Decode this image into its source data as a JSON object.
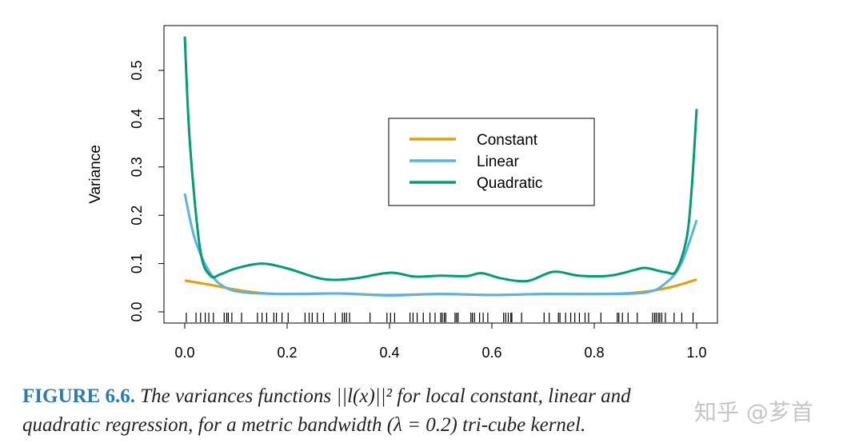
{
  "chart_data": {
    "type": "line",
    "title": "",
    "xlabel": "",
    "ylabel": "Variance",
    "xlim": [
      -0.04,
      1.04
    ],
    "ylim": [
      -0.023,
      0.593
    ],
    "xticks": [
      "0.0",
      "0.2",
      "0.4",
      "0.6",
      "0.8",
      "1.0"
    ],
    "yticks": [
      "0.0",
      "0.1",
      "0.2",
      "0.3",
      "0.4",
      "0.5"
    ],
    "grid": false,
    "legend_position": "upper-center-right",
    "series": [
      {
        "name": "Constant",
        "color": "#E69F00",
        "x": [
          0,
          0.05,
          0.1,
          0.15,
          0.2,
          0.3,
          0.4,
          0.5,
          0.6,
          0.7,
          0.8,
          0.87,
          0.92,
          0.96,
          1.0
        ],
        "y": [
          0.065,
          0.056,
          0.046,
          0.039,
          0.037,
          0.038,
          0.035,
          0.037,
          0.035,
          0.037,
          0.037,
          0.039,
          0.045,
          0.054,
          0.067
        ]
      },
      {
        "name": "Linear",
        "color": "#56B4E9",
        "x": [
          0,
          0.02,
          0.05,
          0.08,
          0.12,
          0.2,
          0.3,
          0.4,
          0.5,
          0.6,
          0.7,
          0.8,
          0.9,
          0.94,
          0.97,
          1.0
        ],
        "y": [
          0.245,
          0.15,
          0.08,
          0.05,
          0.04,
          0.037,
          0.038,
          0.034,
          0.037,
          0.035,
          0.037,
          0.037,
          0.04,
          0.06,
          0.1,
          0.19
        ]
      },
      {
        "name": "Quadratic",
        "color": "#009E73",
        "x": [
          0,
          0.01,
          0.03,
          0.05,
          0.07,
          0.1,
          0.15,
          0.2,
          0.27,
          0.33,
          0.4,
          0.45,
          0.5,
          0.55,
          0.58,
          0.62,
          0.67,
          0.72,
          0.77,
          0.83,
          0.88,
          0.9,
          0.94,
          0.96,
          0.98,
          0.99,
          1.0
        ],
        "y": [
          0.57,
          0.35,
          0.13,
          0.075,
          0.078,
          0.09,
          0.1,
          0.09,
          0.068,
          0.069,
          0.081,
          0.073,
          0.075,
          0.074,
          0.08,
          0.069,
          0.064,
          0.083,
          0.075,
          0.075,
          0.087,
          0.091,
          0.082,
          0.085,
          0.15,
          0.25,
          0.42
        ]
      }
    ],
    "rug": [
      0.003,
      0.022,
      0.031,
      0.04,
      0.047,
      0.056,
      0.077,
      0.082,
      0.085,
      0.092,
      0.111,
      0.142,
      0.151,
      0.16,
      0.174,
      0.179,
      0.19,
      0.202,
      0.235,
      0.243,
      0.249,
      0.259,
      0.271,
      0.294,
      0.308,
      0.312,
      0.316,
      0.322,
      0.362,
      0.395,
      0.402,
      0.41,
      0.44,
      0.446,
      0.454,
      0.466,
      0.479,
      0.489,
      0.5,
      0.503,
      0.507,
      0.51,
      0.528,
      0.531,
      0.534,
      0.559,
      0.562,
      0.566,
      0.576,
      0.583,
      0.592,
      0.623,
      0.627,
      0.632,
      0.637,
      0.639,
      0.658,
      0.702,
      0.712,
      0.73,
      0.733,
      0.744,
      0.754,
      0.762,
      0.771,
      0.782,
      0.789,
      0.813,
      0.845,
      0.848,
      0.855,
      0.866,
      0.884,
      0.914,
      0.918,
      0.921,
      0.925,
      0.928,
      0.932,
      0.939,
      0.956,
      0.971,
      0.993
    ]
  },
  "caption": {
    "label": "FIGURE 6.6.",
    "line1": "The variances functions ||l(x)||² for local constant, linear and",
    "line2": "quadratic regression, for a metric bandwidth (λ = 0.2) tri-cube kernel."
  },
  "watermark": "知乎 @芗首"
}
